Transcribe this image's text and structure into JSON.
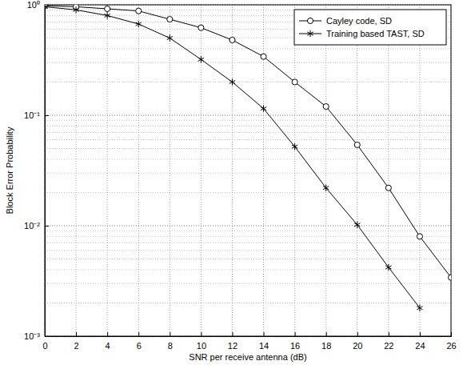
{
  "chart_data": {
    "type": "line",
    "x_label": "SNR per receive antenna (dB)",
    "y_label": "Block Error Probability",
    "x": [
      0,
      2,
      4,
      6,
      8,
      10,
      12,
      14,
      16,
      18,
      20,
      22,
      24,
      26
    ],
    "series": [
      {
        "name": "Cayley code, SD",
        "color": "#000000",
        "marker": "circle",
        "line_style": "solid",
        "values": [
          0.98,
          0.96,
          0.92,
          0.88,
          0.74,
          0.62,
          0.48,
          0.34,
          0.2,
          0.12,
          0.054,
          0.022,
          0.008,
          0.0034
        ]
      },
      {
        "name": "Training based TAST, SD",
        "color": "#000000",
        "marker": "star",
        "line_style": "solid",
        "values": [
          0.96,
          0.9,
          0.8,
          0.67,
          0.5,
          0.32,
          0.2,
          0.115,
          0.052,
          0.022,
          0.0102,
          0.0042,
          0.0018,
          null
        ]
      }
    ],
    "xlim": [
      0,
      26
    ],
    "xticks": [
      0,
      2,
      4,
      6,
      8,
      10,
      12,
      14,
      16,
      18,
      20,
      22,
      24,
      26
    ],
    "ylim": [
      0.001,
      1
    ],
    "yticks": [
      {
        "value": 0.001,
        "label": "10⁻³"
      },
      {
        "value": 0.01,
        "label": "10⁻²"
      },
      {
        "value": 0.1,
        "label": "10⁻¹"
      },
      {
        "value": 1,
        "label": "10⁰"
      }
    ],
    "log": "y",
    "grid": true,
    "legend": "top-right"
  }
}
